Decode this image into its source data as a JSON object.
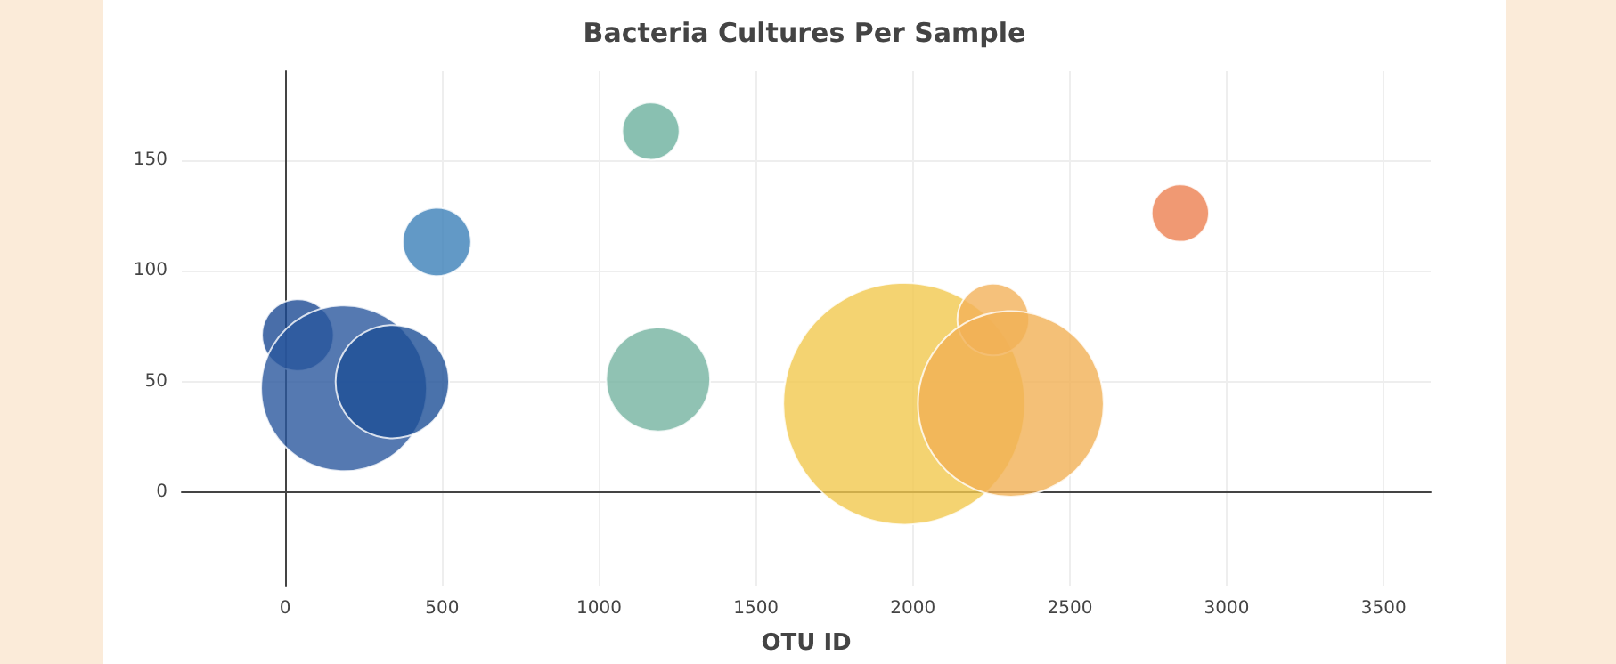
{
  "chart_data": {
    "type": "bubble",
    "title": "Bacteria Cultures Per Sample",
    "xlabel": "OTU ID",
    "x": [
      40,
      187,
      341,
      483,
      1165,
      1188,
      1972,
      2256,
      2312,
      2852
    ],
    "values": [
      71,
      47,
      50,
      113,
      163,
      51,
      40,
      78,
      40,
      126
    ],
    "sizes": [
      0.088,
      0.47,
      0.22,
      0.08,
      0.056,
      0.185,
      1,
      0.088,
      0.59,
      0.056
    ],
    "colors": [
      "#1b4a94",
      "#2b579e",
      "#1d4f96",
      "#3b7fb8",
      "#6cb09e",
      "#74b3a0",
      "#f1c84e",
      "#f2b25a",
      "#f1b055",
      "#ec7f50"
    ],
    "xlim": [
      -330,
      3650
    ],
    "xticks": [
      0,
      500,
      1000,
      1500,
      2000,
      2500,
      3000,
      3500
    ],
    "ylim": [
      -42,
      190
    ],
    "yticks": [
      0,
      50,
      100,
      150
    ],
    "grid": true,
    "marker": "circle"
  }
}
